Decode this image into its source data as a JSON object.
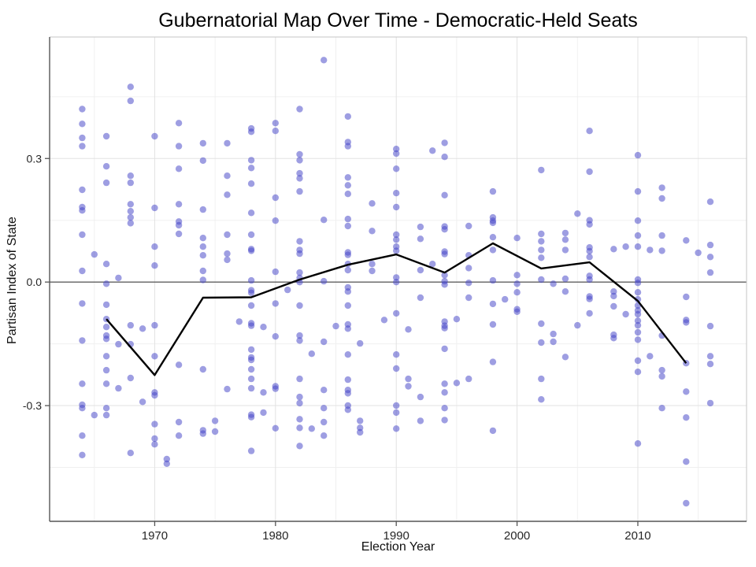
{
  "chart_data": {
    "type": "scatter",
    "title": "Gubernatorial Map Over Time - Democratic-Held Seats",
    "xlabel": "Election Year",
    "ylabel": "Partisan Index of State",
    "xlim": [
      1961.3,
      2019.0
    ],
    "ylim": [
      -0.581,
      0.595
    ],
    "grid": true,
    "legend": "none",
    "x_ticks_major": [
      1970,
      1980,
      1990,
      2000,
      2010
    ],
    "x_tick_labels": [
      "1970",
      "1980",
      "1990",
      "2000",
      "2010"
    ],
    "x_ticks_minor": [
      1965,
      1975,
      1985,
      1995,
      2005,
      2015
    ],
    "y_ticks_major": [
      -0.3,
      0.0,
      0.3
    ],
    "y_tick_labels": [
      "-0.3",
      "0.0",
      "0.3"
    ],
    "y_ticks_minor": [
      -0.45,
      -0.15,
      0.15,
      0.45
    ],
    "colors": {
      "point": "#4545C8",
      "point_opacity": 0.52,
      "trend_line": "#000000",
      "zero_line": "#606060",
      "grid_major": "#E2E2E2",
      "grid_minor": "#F0F0F0",
      "axis_line": "#555555",
      "panel_border": "#C4C4C4",
      "tick_text": "#262626"
    },
    "series": [
      {
        "name": "democratic-held-seats-points",
        "type": "scatter",
        "points_by_year": {
          "1964": [
            0.42,
            0.384,
            0.35,
            0.33,
            0.224,
            0.182,
            0.174,
            0.115,
            0.027,
            -0.052,
            -0.142,
            -0.247,
            -0.298,
            -0.306,
            -0.373,
            -0.42
          ],
          "1965": [
            0.067,
            -0.323
          ],
          "1966": [
            0.354,
            0.281,
            0.241,
            0.044,
            -0.004,
            -0.055,
            -0.09,
            -0.109,
            -0.13,
            -0.138,
            -0.18,
            -0.214,
            -0.247,
            -0.306,
            -0.323
          ],
          "1967": [
            0.01,
            -0.151,
            -0.258
          ],
          "1968": [
            0.474,
            0.44,
            0.258,
            0.241,
            0.189,
            0.172,
            0.157,
            0.143,
            -0.105,
            -0.151,
            -0.233,
            -0.415
          ],
          "1969": [
            -0.113,
            -0.291
          ],
          "1970": [
            0.354,
            0.18,
            0.086,
            0.04,
            -0.105,
            -0.18,
            -0.268,
            -0.275,
            -0.345,
            -0.38,
            -0.394
          ],
          "1971": [
            -0.43,
            -0.441
          ],
          "1972": [
            0.386,
            0.33,
            0.275,
            0.189,
            0.147,
            0.138,
            0.117,
            -0.201,
            -0.34,
            -0.373
          ],
          "1974": [
            0.337,
            0.295,
            0.176,
            0.107,
            0.086,
            0.065,
            0.027,
            0.005,
            -0.212,
            -0.36,
            -0.368
          ],
          "1975": [
            -0.337,
            -0.363
          ],
          "1976": [
            0.337,
            0.258,
            0.212,
            0.115,
            0.069,
            0.054,
            -0.26
          ],
          "1977": [
            -0.096
          ],
          "1978": [
            0.373,
            0.365,
            0.296,
            0.277,
            0.239,
            0.168,
            0.115,
            0.08,
            0.076,
            0.004,
            -0.02,
            -0.026,
            -0.057,
            -0.1,
            -0.106,
            -0.164,
            -0.183,
            -0.189,
            -0.212,
            -0.235,
            -0.258,
            -0.322,
            -0.328,
            -0.41
          ],
          "1979": [
            -0.109,
            -0.268,
            -0.317
          ],
          "1980": [
            0.386,
            0.367,
            0.205,
            0.149,
            0.025,
            -0.052,
            -0.132,
            -0.253,
            -0.259,
            -0.355
          ],
          "1981": [
            -0.019
          ],
          "1982": [
            0.42,
            0.31,
            0.296,
            0.264,
            0.252,
            0.22,
            0.099,
            0.078,
            0.069,
            0.023,
            0.01,
            0.0,
            -0.057,
            -0.13,
            -0.142,
            -0.235,
            -0.279,
            -0.294,
            -0.333,
            -0.354,
            -0.398
          ],
          "1983": [
            -0.174,
            -0.356
          ],
          "1984": [
            0.539,
            0.151,
            0.002,
            -0.145,
            -0.262,
            -0.306,
            -0.34,
            -0.373
          ],
          "1985": [
            -0.107
          ],
          "1986": [
            0.402,
            0.34,
            0.33,
            0.254,
            0.235,
            0.214,
            0.153,
            0.136,
            0.072,
            0.066,
            0.044,
            0.029,
            -0.013,
            -0.023,
            -0.057,
            -0.103,
            -0.113,
            -0.176,
            -0.237,
            -0.262,
            -0.27,
            -0.3,
            -0.31
          ],
          "1987": [
            -0.149,
            -0.337,
            -0.354,
            -0.365
          ],
          "1988": [
            0.191,
            0.124,
            0.044,
            0.027
          ],
          "1989": [
            -0.092
          ],
          "1990": [
            0.323,
            0.312,
            0.275,
            0.216,
            0.182,
            0.115,
            0.103,
            0.086,
            0.076,
            0.011,
            0.0,
            -0.076,
            -0.176,
            -0.21,
            -0.3,
            -0.317,
            -0.356
          ],
          "1991": [
            -0.115,
            -0.235,
            -0.253
          ],
          "1992": [
            0.134,
            0.105,
            0.029,
            -0.038,
            -0.279,
            -0.337
          ],
          "1993": [
            0.319,
            0.044
          ],
          "1994": [
            0.338,
            0.304,
            0.211,
            0.135,
            0.128,
            0.074,
            0.068,
            0.017,
            0.002,
            -0.006,
            -0.096,
            -0.106,
            -0.112,
            -0.162,
            -0.247,
            -0.268,
            -0.306,
            -0.335
          ],
          "1995": [
            -0.09,
            -0.245
          ],
          "1996": [
            0.136,
            0.065,
            0.034,
            -0.002,
            -0.038,
            -0.235
          ],
          "1998": [
            0.22,
            0.157,
            0.149,
            0.144,
            0.109,
            0.078,
            0.004,
            -0.053,
            -0.103,
            -0.194,
            -0.361
          ],
          "1999": [
            -0.042
          ],
          "2000": [
            0.107,
            0.017,
            -0.004,
            -0.025,
            -0.066,
            -0.072
          ],
          "2002": [
            0.272,
            0.117,
            0.099,
            0.078,
            0.059,
            0.006,
            -0.101,
            -0.147,
            -0.235,
            -0.285
          ],
          "2003": [
            -0.004,
            -0.126,
            -0.145
          ],
          "2004": [
            0.119,
            0.103,
            0.078,
            0.008,
            -0.023,
            -0.182
          ],
          "2005": [
            0.166,
            -0.105
          ],
          "2006": [
            0.367,
            0.268,
            0.15,
            0.14,
            0.084,
            0.075,
            0.061,
            0.015,
            0.006,
            -0.035,
            -0.041,
            -0.076
          ],
          "2008": [
            0.08,
            -0.023,
            -0.034,
            -0.059,
            -0.128,
            -0.136
          ],
          "2009": [
            0.086,
            -0.078
          ],
          "2010": [
            0.308,
            0.22,
            0.149,
            0.113,
            0.086,
            0.006,
            -0.002,
            -0.025,
            -0.042,
            -0.057,
            -0.069,
            -0.078,
            -0.094,
            -0.105,
            -0.122,
            -0.14,
            -0.191,
            -0.218,
            -0.392
          ],
          "2011": [
            0.078,
            -0.18
          ],
          "2012": [
            0.229,
            0.203,
            0.113,
            0.076,
            -0.13,
            -0.214,
            -0.229,
            -0.306
          ],
          "2014": [
            0.101,
            -0.036,
            -0.092,
            -0.098,
            -0.197,
            -0.266,
            -0.329,
            -0.436,
            -0.537
          ],
          "2015": [
            0.071
          ],
          "2016": [
            0.195,
            0.09,
            0.061,
            0.023,
            -0.107,
            -0.18,
            -0.199,
            -0.294
          ]
        }
      },
      {
        "name": "trend-line",
        "type": "line",
        "points": [
          [
            1966,
            -0.09
          ],
          [
            1970,
            -0.226
          ],
          [
            1974,
            -0.038
          ],
          [
            1978,
            -0.037
          ],
          [
            1982,
            0.006
          ],
          [
            1986,
            0.042
          ],
          [
            1990,
            0.067
          ],
          [
            1994,
            0.023
          ],
          [
            1998,
            0.094
          ],
          [
            2002,
            0.033
          ],
          [
            2006,
            0.048
          ],
          [
            2010,
            -0.046
          ],
          [
            2014,
            -0.197
          ]
        ]
      }
    ]
  }
}
